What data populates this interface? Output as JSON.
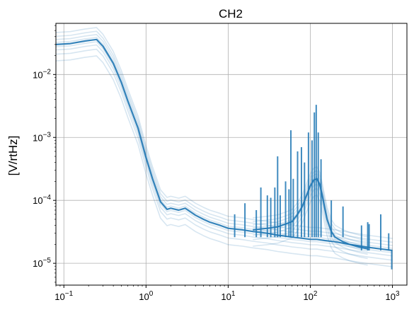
{
  "chart_data": {
    "type": "line",
    "title": "CH2",
    "xlabel": "",
    "ylabel": "[V/rtHz]",
    "xscale": "log",
    "yscale": "log",
    "xlim": [
      0.08,
      1500
    ],
    "ylim": [
      4.5e-06,
      0.065
    ],
    "grid": true,
    "line_color": "#1f77b4",
    "x_ticks": [
      {
        "base": "10",
        "exp": "−1",
        "value": 0.1
      },
      {
        "base": "10",
        "exp": "0",
        "value": 1
      },
      {
        "base": "10",
        "exp": "1",
        "value": 10
      },
      {
        "base": "10",
        "exp": "2",
        "value": 100
      },
      {
        "base": "10",
        "exp": "3",
        "value": 1000
      }
    ],
    "y_ticks": [
      {
        "base": "10",
        "exp": "−5",
        "value": 1e-05
      },
      {
        "base": "10",
        "exp": "−4",
        "value": 0.0001
      },
      {
        "base": "10",
        "exp": "−3",
        "value": 0.001
      },
      {
        "base": "10",
        "exp": "−2",
        "value": 0.01
      }
    ],
    "series": [
      {
        "x": [
          0.08,
          0.12,
          0.18,
          0.25,
          0.3,
          0.4,
          0.5,
          0.6,
          0.8,
          1.0,
          1.2,
          1.5,
          1.8,
          2.0,
          2.5,
          3.0,
          4.0,
          5.0,
          6.0,
          8.0,
          10,
          15,
          20,
          30,
          40,
          50,
          60,
          80,
          100,
          120,
          150,
          200,
          300,
          500,
          700,
          1000
        ],
        "y": [
          0.03,
          0.031,
          0.034,
          0.036,
          0.028,
          0.015,
          0.0075,
          0.0038,
          0.0014,
          0.00048,
          0.00022,
          9.5e-05,
          7.2e-05,
          7.5e-05,
          7e-05,
          7.5e-05,
          5.8e-05,
          5e-05,
          4.5e-05,
          4e-05,
          3.6e-05,
          3.4e-05,
          3.2e-05,
          3e-05,
          2.8e-05,
          2.7e-05,
          2.6e-05,
          2.5e-05,
          2.4e-05,
          2.4e-05,
          2.3e-05,
          2.2e-05,
          2e-05,
          1.8e-05,
          1.7e-05,
          1.6e-05
        ]
      },
      {
        "x": [
          20,
          30,
          40,
          50,
          60,
          70,
          80,
          90,
          100,
          110,
          120,
          130,
          140,
          150,
          160,
          180,
          200,
          250,
          300,
          400,
          500
        ],
        "y": [
          3.4e-05,
          3.6e-05,
          3.8e-05,
          4.2e-05,
          4.6e-05,
          6e-05,
          8e-05,
          0.00012,
          0.00017,
          0.00021,
          0.00022,
          0.00018,
          0.00012,
          7.5e-05,
          5e-05,
          3.2e-05,
          2.6e-05,
          2.2e-05,
          2e-05,
          1.8e-05,
          1.7e-05
        ]
      }
    ],
    "spikes": [
      {
        "x": 12,
        "y": 6e-05
      },
      {
        "x": 16,
        "y": 9e-05
      },
      {
        "x": 22,
        "y": 7e-05
      },
      {
        "x": 25,
        "y": 0.00016
      },
      {
        "x": 30,
        "y": 0.00012
      },
      {
        "x": 33,
        "y": 0.00011
      },
      {
        "x": 37,
        "y": 0.00016
      },
      {
        "x": 40,
        "y": 0.0005
      },
      {
        "x": 43,
        "y": 0.00012
      },
      {
        "x": 50,
        "y": 0.0002
      },
      {
        "x": 55,
        "y": 0.00015
      },
      {
        "x": 58,
        "y": 0.0013
      },
      {
        "x": 62,
        "y": 0.00022
      },
      {
        "x": 70,
        "y": 0.0006
      },
      {
        "x": 78,
        "y": 0.0007
      },
      {
        "x": 85,
        "y": 0.0004
      },
      {
        "x": 95,
        "y": 0.0012
      },
      {
        "x": 105,
        "y": 0.0009
      },
      {
        "x": 112,
        "y": 0.0025
      },
      {
        "x": 118,
        "y": 0.0033
      },
      {
        "x": 125,
        "y": 0.0012
      },
      {
        "x": 135,
        "y": 0.00045
      },
      {
        "x": 180,
        "y": 0.0001
      },
      {
        "x": 250,
        "y": 8e-05
      },
      {
        "x": 420,
        "y": 4e-05
      },
      {
        "x": 500,
        "y": 4.5e-05
      },
      {
        "x": 520,
        "y": 4.2e-05
      },
      {
        "x": 720,
        "y": 6e-05
      },
      {
        "x": 900,
        "y": 3e-05
      },
      {
        "x": 980,
        "y": 8e-06
      }
    ]
  }
}
